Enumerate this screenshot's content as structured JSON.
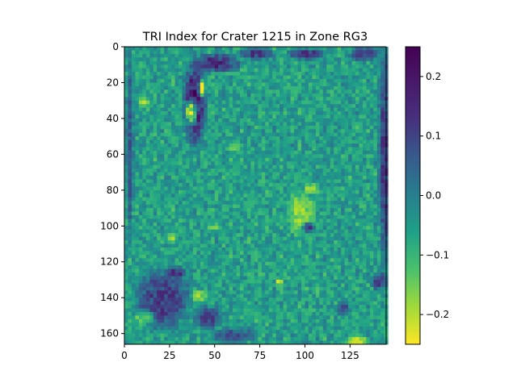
{
  "chart_data": {
    "type": "heatmap",
    "title": "TRI Index for Crater 1215 in Zone RG3",
    "xlabel": "",
    "ylabel": "",
    "colormap": "viridis_r",
    "xlim": [
      0,
      145
    ],
    "ylim": [
      166,
      0
    ],
    "x_ticks": [
      0,
      25,
      50,
      75,
      100,
      125
    ],
    "y_ticks": [
      0,
      20,
      40,
      60,
      80,
      100,
      120,
      140,
      160
    ],
    "colorbar": {
      "vmin": -0.25,
      "vmax": 0.25,
      "ticks": [
        -0.2,
        -0.1,
        0.0,
        0.1,
        0.2
      ],
      "tick_labels": [
        "−0.2",
        "−0.1",
        "0.0",
        "0.1",
        "0.2"
      ]
    },
    "grid": false,
    "legend": "none",
    "image_shape": [
      166,
      145
    ],
    "base_value": -0.03,
    "noise_amplitude": 0.06,
    "features": [
      {
        "x": 38,
        "y": 30,
        "rx": 6,
        "ry": 22,
        "value": 0.25
      },
      {
        "x": 36,
        "y": 36,
        "rx": 3,
        "ry": 7,
        "value": -0.25
      },
      {
        "x": 42,
        "y": 22,
        "rx": 2,
        "ry": 5,
        "value": -0.25
      },
      {
        "x": 50,
        "y": 8,
        "rx": 12,
        "ry": 5,
        "value": 0.22
      },
      {
        "x": 72,
        "y": 3,
        "rx": 10,
        "ry": 3,
        "value": 0.2
      },
      {
        "x": 100,
        "y": 3,
        "rx": 10,
        "ry": 3,
        "value": 0.2
      },
      {
        "x": 132,
        "y": 3,
        "rx": 8,
        "ry": 4,
        "value": 0.18
      },
      {
        "x": 10,
        "y": 30,
        "rx": 3,
        "ry": 3,
        "value": -0.22
      },
      {
        "x": 143,
        "y": 60,
        "rx": 3,
        "ry": 60,
        "value": 0.2
      },
      {
        "x": 2,
        "y": 55,
        "rx": 2,
        "ry": 50,
        "value": 0.15
      },
      {
        "x": 97,
        "y": 92,
        "rx": 7,
        "ry": 12,
        "value": -0.2
      },
      {
        "x": 101,
        "y": 100,
        "rx": 3,
        "ry": 3,
        "value": 0.25
      },
      {
        "x": 103,
        "y": 78,
        "rx": 4,
        "ry": 3,
        "value": -0.22
      },
      {
        "x": 48,
        "y": 100,
        "rx": 3,
        "ry": 2,
        "value": -0.2
      },
      {
        "x": 25,
        "y": 106,
        "rx": 3,
        "ry": 2,
        "value": -0.2
      },
      {
        "x": 20,
        "y": 140,
        "rx": 14,
        "ry": 16,
        "value": 0.2
      },
      {
        "x": 28,
        "y": 125,
        "rx": 6,
        "ry": 3,
        "value": 0.2
      },
      {
        "x": 45,
        "y": 150,
        "rx": 8,
        "ry": 6,
        "value": 0.18
      },
      {
        "x": 60,
        "y": 160,
        "rx": 12,
        "ry": 4,
        "value": 0.16
      },
      {
        "x": 120,
        "y": 145,
        "rx": 4,
        "ry": 3,
        "value": 0.22
      },
      {
        "x": 128,
        "y": 163,
        "rx": 6,
        "ry": 3,
        "value": -0.22
      },
      {
        "x": 40,
        "y": 138,
        "rx": 4,
        "ry": 3,
        "value": -0.2
      },
      {
        "x": 10,
        "y": 150,
        "rx": 5,
        "ry": 4,
        "value": -0.2
      },
      {
        "x": 85,
        "y": 130,
        "rx": 2,
        "ry": 2,
        "value": -0.22
      },
      {
        "x": 60,
        "y": 55,
        "rx": 4,
        "ry": 3,
        "value": -0.15
      },
      {
        "x": 140,
        "y": 130,
        "rx": 4,
        "ry": 5,
        "value": 0.18
      }
    ]
  }
}
